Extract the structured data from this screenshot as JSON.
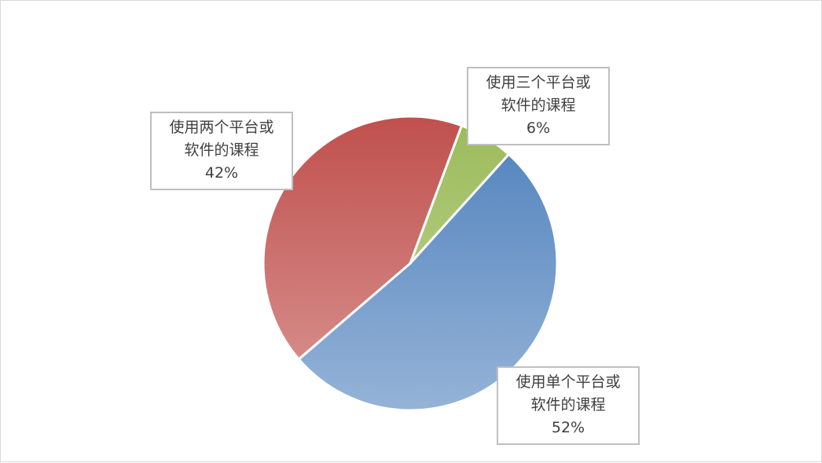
{
  "chart_data": {
    "type": "pie",
    "title": "",
    "categories": [
      "使用单个平台或软件的课程",
      "使用两个平台或软件的课程",
      "使用三个平台或软件的课程"
    ],
    "values": [
      52,
      42,
      6
    ],
    "labels": [
      {
        "line1": "使用单个平台或",
        "line2": "软件的课程",
        "pct": "52%"
      },
      {
        "line1": "使用两个平台或",
        "line2": "软件的课程",
        "pct": "42%"
      },
      {
        "line1": "使用三个平台或",
        "line2": "软件的课程",
        "pct": "6%"
      }
    ],
    "colors": [
      {
        "dark": "#4f81bd",
        "light": "#95b3d7"
      },
      {
        "dark": "#c0504d",
        "light": "#d99694"
      },
      {
        "dark": "#9bbb59",
        "light": "#c3d69b"
      }
    ],
    "legend": "none",
    "data_labels": "callout boxes outside slices"
  }
}
